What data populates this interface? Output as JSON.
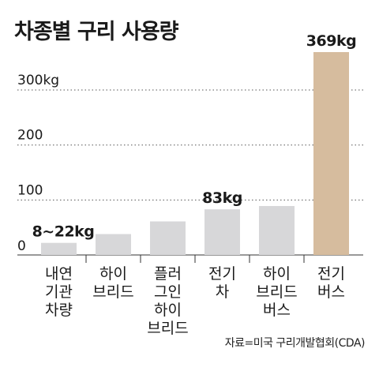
{
  "title": "차종별 구리 사용량",
  "source": "자료=미국 구리개발협회(CDA)",
  "chart_data": {
    "type": "bar",
    "title": "차종별 구리 사용량",
    "categories": [
      [
        "내연",
        "기관",
        "차량"
      ],
      [
        "하이",
        "브리드"
      ],
      [
        "플러",
        "그인",
        "하이",
        "브리드"
      ],
      [
        "전기",
        "차"
      ],
      [
        "하이",
        "브리드",
        "버스"
      ],
      [
        "전기",
        "버스"
      ]
    ],
    "values": [
      22,
      38,
      61,
      83,
      89,
      369
    ],
    "value_labels": [
      "8~22kg",
      "",
      "",
      "83kg",
      "",
      "369kg"
    ],
    "y_ticks": [
      {
        "value": 0,
        "label": "0"
      },
      {
        "value": 100,
        "label": "100"
      },
      {
        "value": 200,
        "label": "200"
      },
      {
        "value": 300,
        "label": "300kg"
      }
    ],
    "ylim": [
      0,
      369
    ],
    "xlabel": "",
    "ylabel": "",
    "grid": "dotted horizontal",
    "colors": {
      "bar": "#d7d7d9",
      "highlight": "#d6bc9e",
      "text": "#1a1a1a",
      "grid": "#555555",
      "axis": "#333333"
    },
    "highlight_index": 5
  }
}
